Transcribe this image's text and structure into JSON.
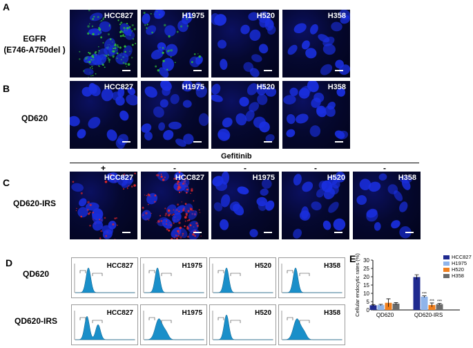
{
  "panels": {
    "A": {
      "letter": "A",
      "row_label_line1": "EGFR",
      "row_label_line2": "(E746-A750del )",
      "images": [
        {
          "cell_line": "HCC827",
          "stain": "green"
        },
        {
          "cell_line": "H1975",
          "stain": "green-weak"
        },
        {
          "cell_line": "H520",
          "stain": "none"
        },
        {
          "cell_line": "H358",
          "stain": "none"
        }
      ]
    },
    "B": {
      "letter": "B",
      "row_label": "QD620",
      "images": [
        {
          "cell_line": "HCC827",
          "stain": "none"
        },
        {
          "cell_line": "H1975",
          "stain": "none"
        },
        {
          "cell_line": "H520",
          "stain": "none"
        },
        {
          "cell_line": "H358",
          "stain": "none"
        }
      ]
    },
    "C": {
      "letter": "C",
      "row_label": "QD620-IRS",
      "treatment_label": "Gefitinib",
      "treatment_signs": [
        "+",
        "-",
        "-",
        "-",
        "-"
      ],
      "images": [
        {
          "cell_line": "HCC827",
          "stain": "red-weak"
        },
        {
          "cell_line": "HCC827",
          "stain": "red"
        },
        {
          "cell_line": "H1975",
          "stain": "none"
        },
        {
          "cell_line": "H520",
          "stain": "none"
        },
        {
          "cell_line": "H358",
          "stain": "none"
        }
      ]
    },
    "D": {
      "letter": "D",
      "row_labels": [
        "QD620",
        "QD620-IRS"
      ],
      "rows": [
        [
          "HCC827",
          "H1975",
          "H520",
          "H358"
        ],
        [
          "HCC827",
          "H1975",
          "H520",
          "H358"
        ]
      ]
    },
    "E": {
      "letter": "E"
    }
  },
  "colors": {
    "nucleus": "#1a2fe0",
    "egfr": "#2fbf3a",
    "qd620": "#e0262a",
    "flow_fill": "#1a8fc9"
  },
  "chart_data": {
    "type": "bar",
    "categories": [
      "QD620",
      "QD620-IRS"
    ],
    "ylabel": "Cellular endocytic rates (%)",
    "xlabel": "",
    "ylim": [
      0,
      30
    ],
    "yticks": [
      0,
      5,
      10,
      15,
      20,
      25,
      30
    ],
    "legend_position": "right",
    "series": [
      {
        "name": "HCC827",
        "color": "#1f2a8f",
        "values": [
          2.8,
          19.8
        ],
        "errors": [
          0.4,
          1.4
        ],
        "sig": [
          "",
          ""
        ]
      },
      {
        "name": "H1975",
        "color": "#8fb4ea",
        "values": [
          3.0,
          8.0
        ],
        "errors": [
          0.4,
          0.5
        ],
        "sig": [
          "",
          "***"
        ]
      },
      {
        "name": "H520",
        "color": "#f07f1e",
        "values": [
          4.3,
          3.0
        ],
        "errors": [
          2.4,
          1.2
        ],
        "sig": [
          "",
          "***"
        ]
      },
      {
        "name": "H358",
        "color": "#6b6b6b",
        "values": [
          3.8,
          3.5
        ],
        "errors": [
          0.6,
          0.4
        ],
        "sig": [
          "",
          "***"
        ]
      }
    ]
  }
}
